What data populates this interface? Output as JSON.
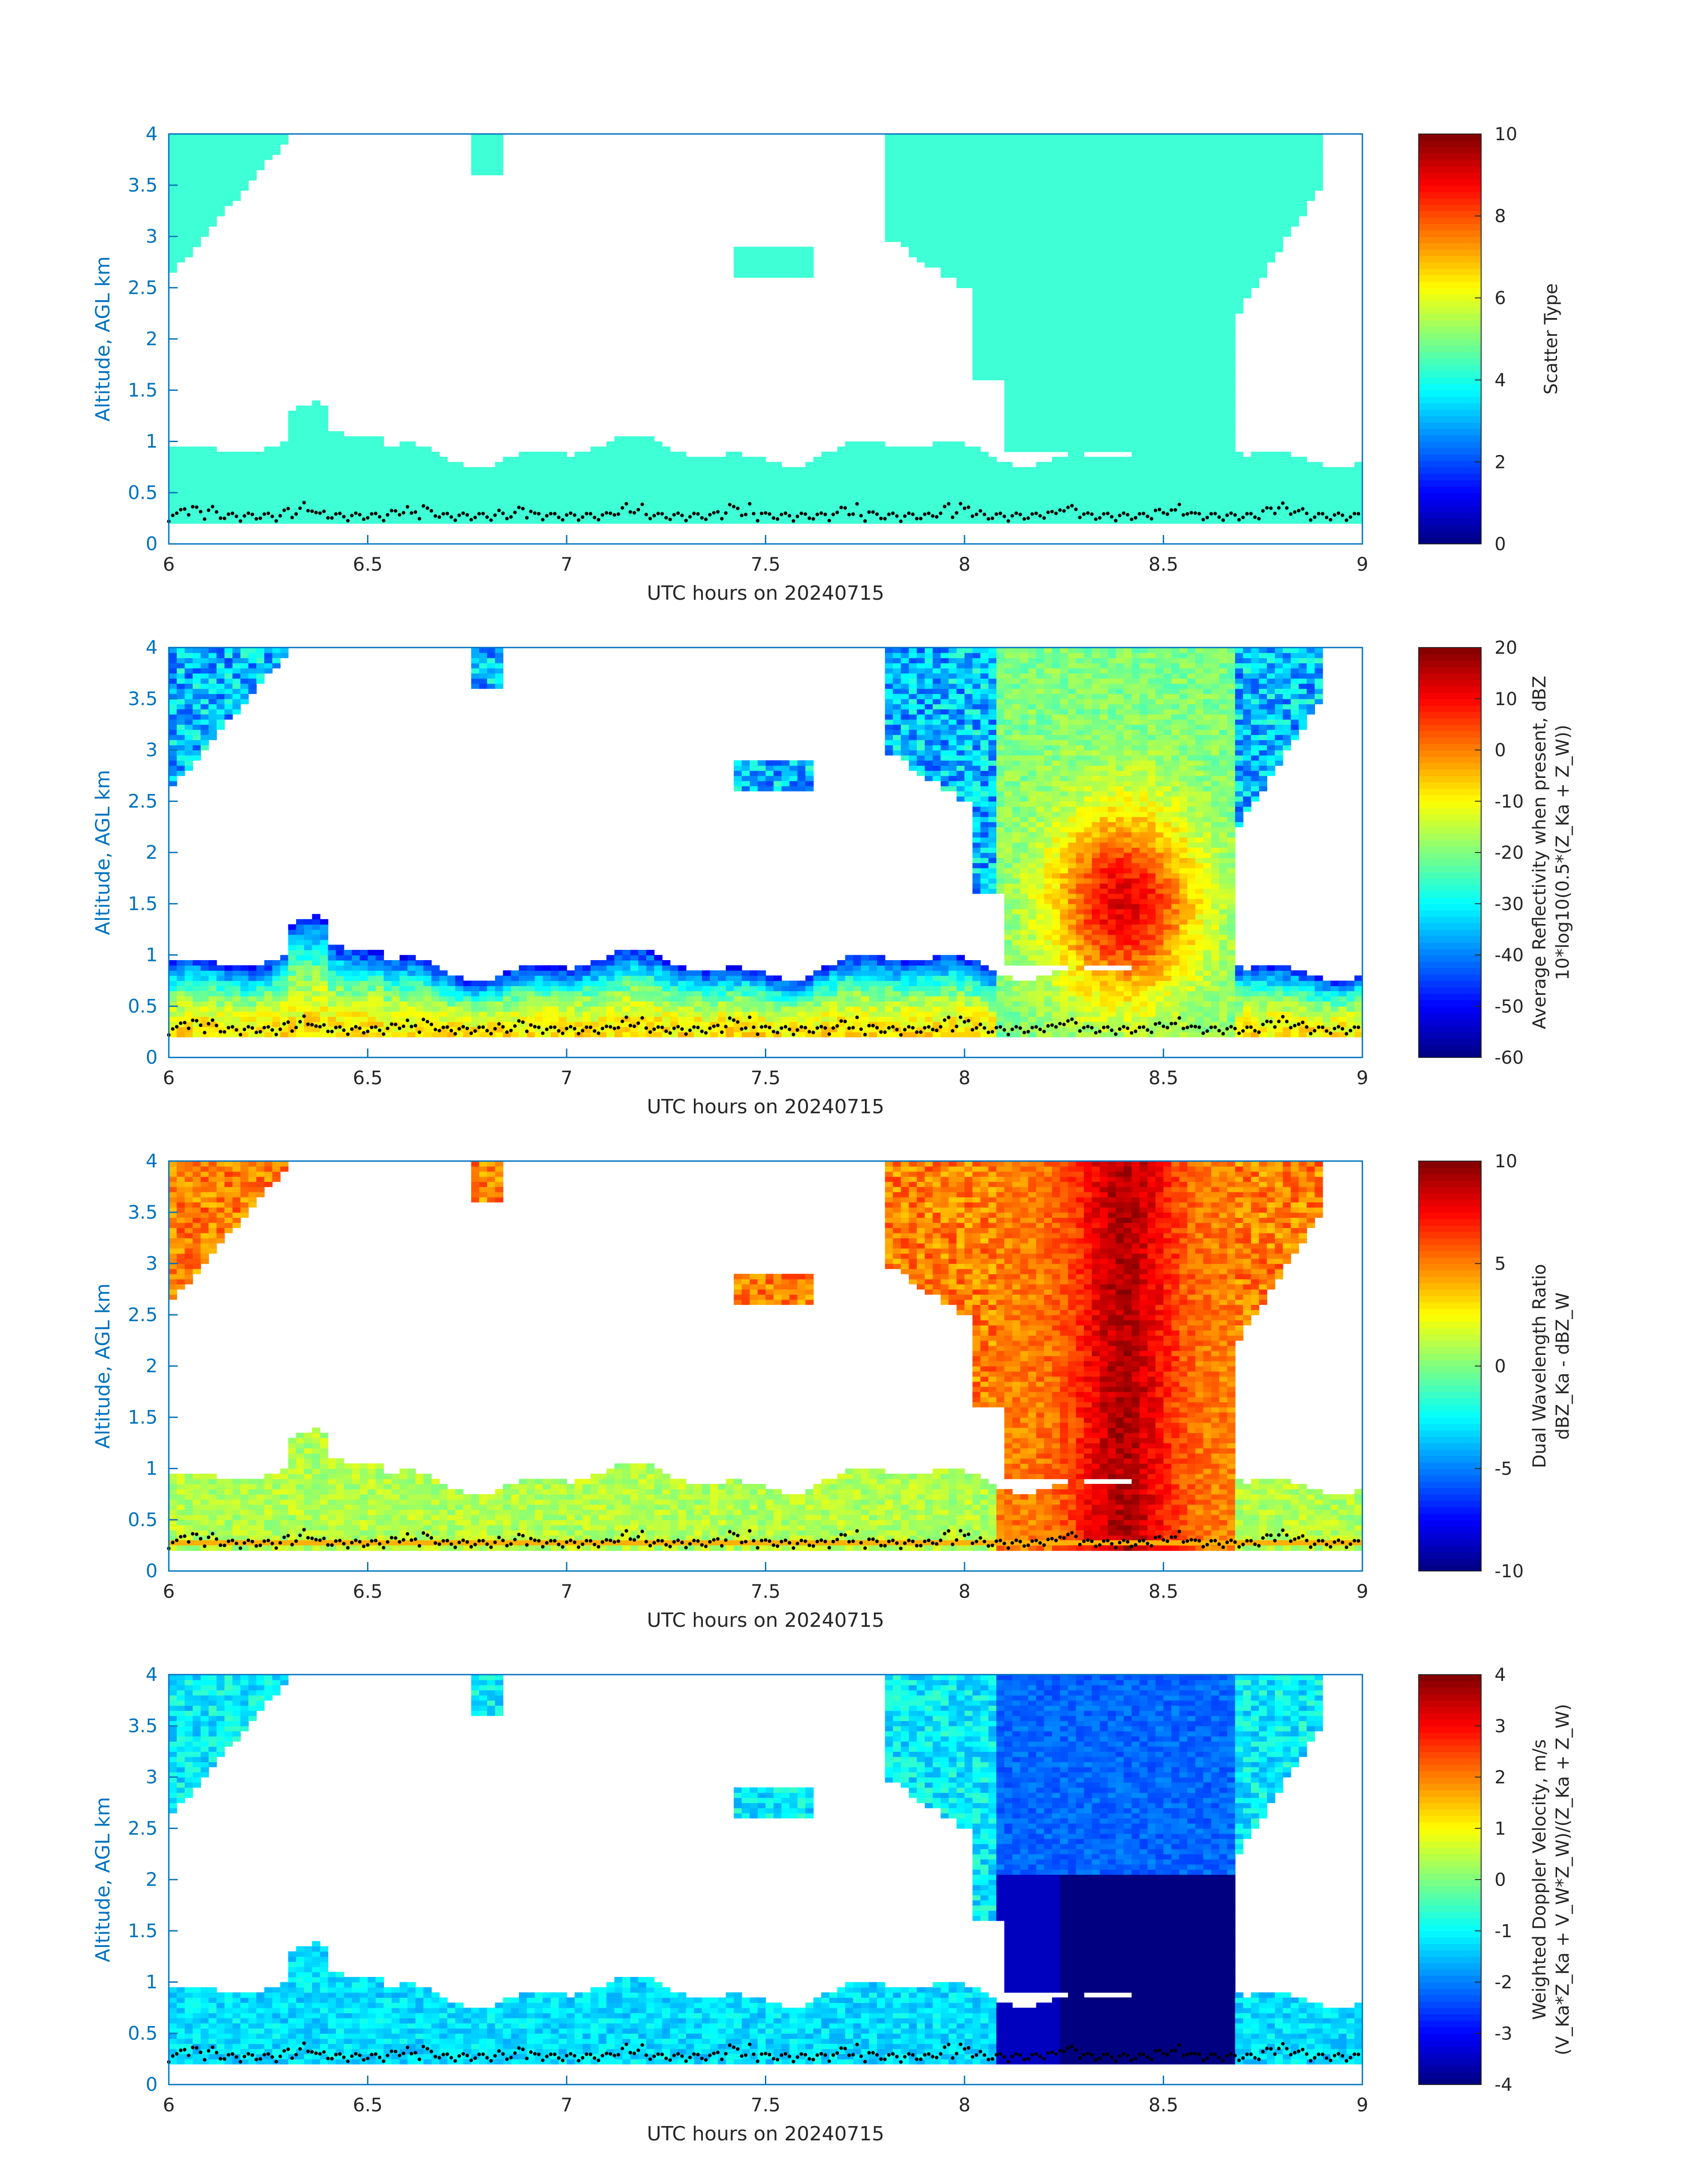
{
  "chart_data": [
    {
      "type": "heatmap",
      "title": "",
      "xlabel": "UTC hours on 20240715",
      "ylabel": "Altitude, AGL km",
      "xlim": [
        6,
        9
      ],
      "ylim": [
        0,
        4
      ],
      "xticks": [
        "6",
        "6.5",
        "7",
        "7.5",
        "8",
        "8.5",
        "9"
      ],
      "yticks": [
        "0",
        "0.5",
        "1",
        "1.5",
        "2",
        "2.5",
        "3",
        "3.5",
        "4"
      ],
      "colorbar": {
        "label_lines": [
          "Scatter Type"
        ],
        "range": [
          0,
          10
        ],
        "ticks": [
          "0",
          "2",
          "4",
          "6",
          "8",
          "10"
        ],
        "colormap": "jet"
      }
    },
    {
      "type": "heatmap",
      "title": "",
      "xlabel": "UTC hours on 20240715",
      "ylabel": "Altitude, AGL km",
      "xlim": [
        6,
        9
      ],
      "ylim": [
        0,
        4
      ],
      "xticks": [
        "6",
        "6.5",
        "7",
        "7.5",
        "8",
        "8.5",
        "9"
      ],
      "yticks": [
        "0",
        "0.5",
        "1",
        "1.5",
        "2",
        "2.5",
        "3",
        "3.5",
        "4"
      ],
      "colorbar": {
        "label_lines": [
          "Average Reflectivity when present, dBZ",
          "10*log10(0.5*(Z_Ka + Z_W))"
        ],
        "range": [
          -60,
          20
        ],
        "ticks": [
          "-60",
          "-50",
          "-40",
          "-30",
          "-20",
          "-10",
          "0",
          "10",
          "20"
        ],
        "colormap": "jet"
      }
    },
    {
      "type": "heatmap",
      "title": "",
      "xlabel": "UTC hours on 20240715",
      "ylabel": "Altitude, AGL km",
      "xlim": [
        6,
        9
      ],
      "ylim": [
        0,
        4
      ],
      "xticks": [
        "6",
        "6.5",
        "7",
        "7.5",
        "8",
        "8.5",
        "9"
      ],
      "yticks": [
        "0",
        "0.5",
        "1",
        "1.5",
        "2",
        "2.5",
        "3",
        "3.5",
        "4"
      ],
      "colorbar": {
        "label_lines": [
          "Dual Wavelength Ratio",
          "dBZ_Ka - dBZ_W"
        ],
        "range": [
          -10,
          10
        ],
        "ticks": [
          "-10",
          "-5",
          "0",
          "5",
          "10"
        ],
        "colormap": "jet"
      }
    },
    {
      "type": "heatmap",
      "title": "",
      "xlabel": "UTC hours on 20240715",
      "ylabel": "Altitude, AGL km",
      "xlim": [
        6,
        9
      ],
      "ylim": [
        0,
        4
      ],
      "xticks": [
        "6",
        "6.5",
        "7",
        "7.5",
        "8",
        "8.5",
        "9"
      ],
      "yticks": [
        "0",
        "0.5",
        "1",
        "1.5",
        "2",
        "2.5",
        "3",
        "3.5",
        "4"
      ],
      "colorbar": {
        "label_lines": [
          "Weighted Doppler Velocity, m/s",
          "(V_Ka*Z_Ka + V_W*Z_W)/(Z_Ka + Z_W)"
        ],
        "range": [
          -4,
          4
        ],
        "ticks": [
          "-4",
          "-3",
          "-2",
          "-1",
          "0",
          "1",
          "2",
          "3",
          "4"
        ],
        "colormap": "jet"
      }
    }
  ],
  "colors": {
    "axis_text": "#0072bd",
    "scatter_cyan": "#3effd5"
  }
}
